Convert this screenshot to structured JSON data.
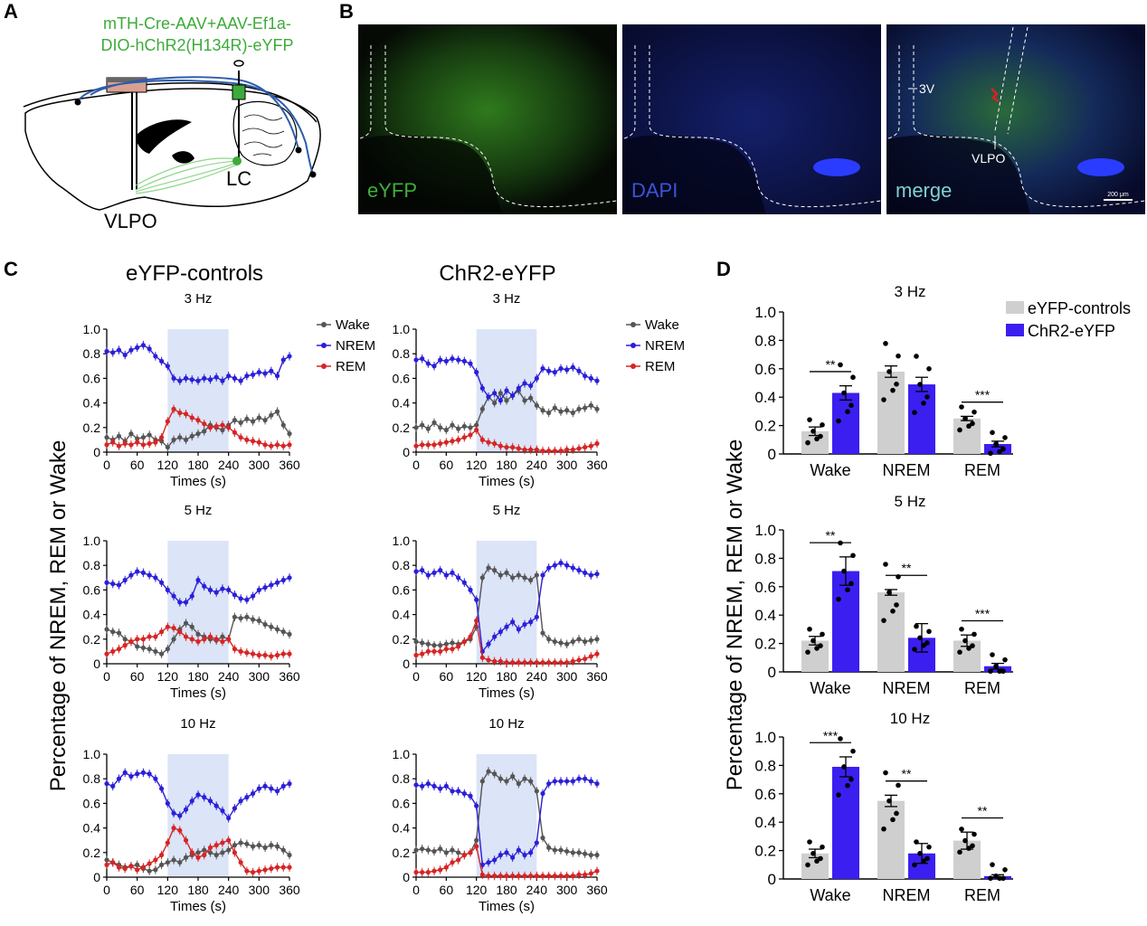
{
  "panel_labels": {
    "a": "A",
    "b": "B",
    "c": "C",
    "d": "D"
  },
  "panel_a": {
    "virus_line1": "mTH-Cre-AAV+AAV-Ef1a-",
    "virus_line2": "DIO-hChR2(H134R)-eYFP",
    "lc_label": "LC",
    "vlpo_label": "VLPO",
    "colors": {
      "virus_text": "#3dab3a",
      "fiber": "#2e5cab",
      "projection": "#8fd68c"
    }
  },
  "panel_b": {
    "images": [
      {
        "label": "eYFP",
        "label_color": "#3fae3a"
      },
      {
        "label": "DAPI",
        "label_color": "#3c54d6"
      },
      {
        "label": "merge",
        "label_color": "#7fd0d3"
      }
    ],
    "annotation_3v": "3V",
    "annotation_vlpo": "VLPO",
    "scale_bar": "200 μm"
  },
  "panel_c": {
    "col_titles": [
      "eYFP-controls",
      "ChR2-eYFP"
    ],
    "row_titles": [
      "3 Hz",
      "5 Hz",
      "10 Hz"
    ],
    "y_axis_label": "Percentage of NREM, REM or Wake",
    "x_axis_label": "Times (s)",
    "legend": [
      "Wake",
      "NREM",
      "REM"
    ],
    "colors": {
      "Wake": "#555555",
      "NREM": "#2b1fd9",
      "REM": "#d62525",
      "stim": "#dce4f7"
    }
  },
  "panel_d": {
    "y_axis_label": "Percentage of NREM, REM or Wake",
    "legend": [
      "eYFP-controls",
      "ChR2-eYFP"
    ],
    "colors": {
      "eYFP-controls": "#cfcfcf",
      "ChR2-eYFP": "#3a1ff0"
    }
  },
  "chart_data": [
    {
      "type": "line",
      "title": "eYFP-controls 3 Hz",
      "xlabel": "Times (s)",
      "ylabel": "Percentage",
      "xlim": [
        0,
        360
      ],
      "ylim": [
        0,
        1.0
      ],
      "stim_window": [
        120,
        240
      ],
      "x": [
        0,
        12,
        24,
        36,
        48,
        60,
        72,
        84,
        96,
        108,
        120,
        132,
        144,
        156,
        168,
        180,
        192,
        204,
        216,
        228,
        240,
        252,
        264,
        276,
        288,
        300,
        312,
        324,
        336,
        348,
        360
      ],
      "series": [
        {
          "name": "Wake",
          "values": [
            0.12,
            0.1,
            0.13,
            0.09,
            0.15,
            0.11,
            0.12,
            0.14,
            0.1,
            0.09,
            0.04,
            0.1,
            0.12,
            0.1,
            0.13,
            0.15,
            0.17,
            0.22,
            0.2,
            0.18,
            0.22,
            0.26,
            0.24,
            0.27,
            0.25,
            0.28,
            0.26,
            0.3,
            0.33,
            0.22,
            0.15
          ]
        },
        {
          "name": "NREM",
          "values": [
            0.82,
            0.81,
            0.83,
            0.79,
            0.83,
            0.85,
            0.87,
            0.84,
            0.78,
            0.74,
            0.7,
            0.6,
            0.58,
            0.6,
            0.59,
            0.58,
            0.6,
            0.59,
            0.61,
            0.58,
            0.62,
            0.6,
            0.58,
            0.62,
            0.63,
            0.65,
            0.64,
            0.66,
            0.62,
            0.75,
            0.78
          ]
        },
        {
          "name": "REM",
          "values": [
            0.06,
            0.08,
            0.05,
            0.07,
            0.06,
            0.08,
            0.06,
            0.07,
            0.08,
            0.12,
            0.25,
            0.35,
            0.32,
            0.31,
            0.28,
            0.26,
            0.23,
            0.2,
            0.21,
            0.22,
            0.2,
            0.16,
            0.12,
            0.1,
            0.09,
            0.08,
            0.06,
            0.05,
            0.06,
            0.05,
            0.06
          ]
        }
      ]
    },
    {
      "type": "line",
      "title": "ChR2-eYFP 3 Hz",
      "xlabel": "Times (s)",
      "ylabel": "Percentage",
      "xlim": [
        0,
        360
      ],
      "ylim": [
        0,
        1.0
      ],
      "stim_window": [
        120,
        240
      ],
      "x": [
        0,
        12,
        24,
        36,
        48,
        60,
        72,
        84,
        96,
        108,
        120,
        132,
        144,
        156,
        168,
        180,
        192,
        204,
        216,
        228,
        240,
        252,
        264,
        276,
        288,
        300,
        312,
        324,
        336,
        348,
        360
      ],
      "series": [
        {
          "name": "Wake",
          "values": [
            0.2,
            0.22,
            0.19,
            0.24,
            0.2,
            0.18,
            0.22,
            0.19,
            0.21,
            0.2,
            0.22,
            0.35,
            0.45,
            0.4,
            0.48,
            0.42,
            0.46,
            0.5,
            0.42,
            0.44,
            0.38,
            0.34,
            0.32,
            0.36,
            0.33,
            0.34,
            0.32,
            0.35,
            0.36,
            0.38,
            0.35
          ]
        },
        {
          "name": "NREM",
          "values": [
            0.75,
            0.76,
            0.72,
            0.7,
            0.75,
            0.74,
            0.76,
            0.75,
            0.74,
            0.72,
            0.65,
            0.52,
            0.45,
            0.48,
            0.42,
            0.5,
            0.46,
            0.52,
            0.56,
            0.54,
            0.6,
            0.68,
            0.66,
            0.65,
            0.68,
            0.67,
            0.69,
            0.66,
            0.62,
            0.6,
            0.58
          ]
        },
        {
          "name": "REM",
          "values": [
            0.05,
            0.06,
            0.06,
            0.06,
            0.07,
            0.08,
            0.09,
            0.1,
            0.12,
            0.14,
            0.18,
            0.1,
            0.08,
            0.07,
            0.05,
            0.04,
            0.04,
            0.03,
            0.02,
            0.02,
            0.02,
            0.01,
            0.01,
            0.01,
            0.01,
            0.02,
            0.02,
            0.03,
            0.04,
            0.05,
            0.07
          ]
        }
      ]
    },
    {
      "type": "line",
      "title": "eYFP-controls 5 Hz",
      "xlabel": "Times (s)",
      "ylabel": "Percentage",
      "xlim": [
        0,
        360
      ],
      "ylim": [
        0,
        1.0
      ],
      "stim_window": [
        120,
        240
      ],
      "x": [
        0,
        12,
        24,
        36,
        48,
        60,
        72,
        84,
        96,
        108,
        120,
        132,
        144,
        156,
        168,
        180,
        192,
        204,
        216,
        228,
        240,
        252,
        264,
        276,
        288,
        300,
        312,
        324,
        336,
        348,
        360
      ],
      "series": [
        {
          "name": "Wake",
          "values": [
            0.28,
            0.26,
            0.25,
            0.2,
            0.18,
            0.14,
            0.13,
            0.12,
            0.1,
            0.08,
            0.12,
            0.2,
            0.28,
            0.33,
            0.3,
            0.24,
            0.22,
            0.2,
            0.19,
            0.22,
            0.2,
            0.38,
            0.37,
            0.38,
            0.36,
            0.35,
            0.32,
            0.3,
            0.28,
            0.26,
            0.24
          ]
        },
        {
          "name": "NREM",
          "values": [
            0.66,
            0.65,
            0.64,
            0.68,
            0.72,
            0.75,
            0.74,
            0.72,
            0.7,
            0.66,
            0.6,
            0.55,
            0.5,
            0.5,
            0.55,
            0.68,
            0.63,
            0.6,
            0.58,
            0.61,
            0.6,
            0.56,
            0.53,
            0.52,
            0.55,
            0.6,
            0.62,
            0.64,
            0.66,
            0.68,
            0.7
          ]
        },
        {
          "name": "REM",
          "values": [
            0.08,
            0.1,
            0.12,
            0.15,
            0.18,
            0.2,
            0.2,
            0.22,
            0.22,
            0.26,
            0.3,
            0.29,
            0.26,
            0.22,
            0.2,
            0.18,
            0.2,
            0.22,
            0.2,
            0.18,
            0.2,
            0.12,
            0.1,
            0.09,
            0.08,
            0.07,
            0.07,
            0.06,
            0.07,
            0.08,
            0.08
          ]
        }
      ]
    },
    {
      "type": "line",
      "title": "ChR2-eYFP 5 Hz",
      "xlabel": "Times (s)",
      "ylabel": "Percentage",
      "xlim": [
        0,
        360
      ],
      "ylim": [
        0,
        1.0
      ],
      "stim_window": [
        120,
        240
      ],
      "x": [
        0,
        12,
        24,
        36,
        48,
        60,
        72,
        84,
        96,
        108,
        120,
        132,
        144,
        156,
        168,
        180,
        192,
        204,
        216,
        228,
        240,
        252,
        264,
        276,
        288,
        300,
        312,
        324,
        336,
        348,
        360
      ],
      "series": [
        {
          "name": "Wake",
          "values": [
            0.18,
            0.17,
            0.16,
            0.15,
            0.15,
            0.16,
            0.17,
            0.16,
            0.18,
            0.2,
            0.3,
            0.7,
            0.78,
            0.76,
            0.72,
            0.74,
            0.7,
            0.72,
            0.7,
            0.68,
            0.72,
            0.25,
            0.2,
            0.18,
            0.17,
            0.16,
            0.18,
            0.2,
            0.18,
            0.19,
            0.2
          ]
        },
        {
          "name": "NREM",
          "values": [
            0.75,
            0.76,
            0.72,
            0.74,
            0.76,
            0.72,
            0.74,
            0.7,
            0.66,
            0.6,
            0.52,
            0.1,
            0.16,
            0.22,
            0.26,
            0.3,
            0.34,
            0.28,
            0.32,
            0.34,
            0.38,
            0.72,
            0.78,
            0.8,
            0.82,
            0.8,
            0.78,
            0.76,
            0.74,
            0.72,
            0.73
          ]
        },
        {
          "name": "REM",
          "values": [
            0.07,
            0.08,
            0.1,
            0.1,
            0.1,
            0.12,
            0.12,
            0.14,
            0.18,
            0.22,
            0.35,
            0.05,
            0.03,
            0.02,
            0.02,
            0.01,
            0.01,
            0.01,
            0.01,
            0.01,
            0.01,
            0.01,
            0.01,
            0.01,
            0.01,
            0.01,
            0.02,
            0.03,
            0.04,
            0.06,
            0.08
          ]
        }
      ]
    },
    {
      "type": "line",
      "title": "eYFP-controls 10 Hz",
      "xlabel": "Times (s)",
      "ylabel": "Percentage",
      "xlim": [
        0,
        360
      ],
      "ylim": [
        0,
        1.0
      ],
      "stim_window": [
        120,
        240
      ],
      "x": [
        0,
        12,
        24,
        36,
        48,
        60,
        72,
        84,
        96,
        108,
        120,
        132,
        144,
        156,
        168,
        180,
        192,
        204,
        216,
        228,
        240,
        252,
        264,
        276,
        288,
        300,
        312,
        324,
        336,
        348,
        360
      ],
      "series": [
        {
          "name": "Wake",
          "values": [
            0.14,
            0.12,
            0.1,
            0.08,
            0.09,
            0.1,
            0.07,
            0.05,
            0.06,
            0.1,
            0.12,
            0.14,
            0.12,
            0.16,
            0.18,
            0.2,
            0.22,
            0.2,
            0.18,
            0.2,
            0.22,
            0.26,
            0.28,
            0.27,
            0.25,
            0.26,
            0.24,
            0.26,
            0.25,
            0.22,
            0.18
          ]
        },
        {
          "name": "NREM",
          "values": [
            0.76,
            0.74,
            0.8,
            0.85,
            0.82,
            0.84,
            0.85,
            0.84,
            0.8,
            0.72,
            0.6,
            0.52,
            0.5,
            0.55,
            0.62,
            0.67,
            0.65,
            0.62,
            0.58,
            0.54,
            0.48,
            0.56,
            0.62,
            0.65,
            0.68,
            0.72,
            0.74,
            0.72,
            0.7,
            0.74,
            0.76
          ]
        },
        {
          "name": "REM",
          "values": [
            0.1,
            0.12,
            0.08,
            0.07,
            0.09,
            0.06,
            0.08,
            0.11,
            0.14,
            0.18,
            0.28,
            0.4,
            0.38,
            0.3,
            0.2,
            0.16,
            0.18,
            0.24,
            0.26,
            0.28,
            0.3,
            0.2,
            0.12,
            0.05,
            0.04,
            0.05,
            0.06,
            0.07,
            0.08,
            0.08,
            0.08
          ]
        }
      ]
    },
    {
      "type": "line",
      "title": "ChR2-eYFP 10 Hz",
      "xlabel": "Times (s)",
      "ylabel": "Percentage",
      "xlim": [
        0,
        360
      ],
      "ylim": [
        0,
        1.0
      ],
      "stim_window": [
        120,
        240
      ],
      "x": [
        0,
        12,
        24,
        36,
        48,
        60,
        72,
        84,
        96,
        108,
        120,
        132,
        144,
        156,
        168,
        180,
        192,
        204,
        216,
        228,
        240,
        252,
        264,
        276,
        288,
        300,
        312,
        324,
        336,
        348,
        360
      ],
      "series": [
        {
          "name": "Wake",
          "values": [
            0.22,
            0.23,
            0.22,
            0.21,
            0.23,
            0.2,
            0.22,
            0.2,
            0.18,
            0.2,
            0.3,
            0.78,
            0.86,
            0.84,
            0.8,
            0.78,
            0.82,
            0.76,
            0.8,
            0.78,
            0.7,
            0.32,
            0.24,
            0.22,
            0.22,
            0.21,
            0.2,
            0.2,
            0.19,
            0.18,
            0.18
          ]
        },
        {
          "name": "NREM",
          "values": [
            0.75,
            0.74,
            0.76,
            0.74,
            0.72,
            0.74,
            0.7,
            0.7,
            0.68,
            0.66,
            0.58,
            0.1,
            0.12,
            0.14,
            0.18,
            0.2,
            0.16,
            0.22,
            0.18,
            0.2,
            0.28,
            0.68,
            0.76,
            0.78,
            0.78,
            0.78,
            0.78,
            0.8,
            0.8,
            0.78,
            0.76
          ]
        },
        {
          "name": "REM",
          "values": [
            0.04,
            0.04,
            0.04,
            0.05,
            0.06,
            0.08,
            0.12,
            0.14,
            0.18,
            0.2,
            0.25,
            0.02,
            0.01,
            0.01,
            0.01,
            0.01,
            0.01,
            0.01,
            0.01,
            0.01,
            0.01,
            0.01,
            0.01,
            0.01,
            0.01,
            0.01,
            0.01,
            0.02,
            0.02,
            0.03,
            0.05
          ]
        }
      ]
    },
    {
      "type": "bar",
      "title": "3 Hz",
      "categories": [
        "Wake",
        "NREM",
        "REM"
      ],
      "ylim": [
        0,
        1.0
      ],
      "series": [
        {
          "name": "eYFP-controls",
          "values": [
            0.16,
            0.58,
            0.25
          ],
          "sem": [
            0.03,
            0.04,
            0.015
          ]
        },
        {
          "name": "ChR2-eYFP",
          "values": [
            0.43,
            0.49,
            0.07
          ],
          "sem": [
            0.05,
            0.05,
            0.02
          ]
        }
      ],
      "significance": [
        "**",
        "",
        "***"
      ]
    },
    {
      "type": "bar",
      "title": "5 Hz",
      "categories": [
        "Wake",
        "NREM",
        "REM"
      ],
      "ylim": [
        0,
        1.0
      ],
      "series": [
        {
          "name": "eYFP-controls",
          "values": [
            0.22,
            0.56,
            0.22
          ],
          "sem": [
            0.03,
            0.02,
            0.04
          ]
        },
        {
          "name": "ChR2-eYFP",
          "values": [
            0.71,
            0.24,
            0.04
          ],
          "sem": [
            0.1,
            0.1,
            0.02
          ]
        }
      ],
      "significance": [
        "**",
        "**",
        "***"
      ]
    },
    {
      "type": "bar",
      "title": "10 Hz",
      "categories": [
        "Wake",
        "NREM",
        "REM"
      ],
      "ylim": [
        0,
        1.0
      ],
      "series": [
        {
          "name": "eYFP-controls",
          "values": [
            0.18,
            0.55,
            0.27
          ],
          "sem": [
            0.03,
            0.04,
            0.06
          ]
        },
        {
          "name": "ChR2-eYFP",
          "values": [
            0.79,
            0.18,
            0.02
          ],
          "sem": [
            0.07,
            0.07,
            0.01
          ]
        }
      ],
      "significance": [
        "***",
        "**",
        "**"
      ]
    }
  ]
}
